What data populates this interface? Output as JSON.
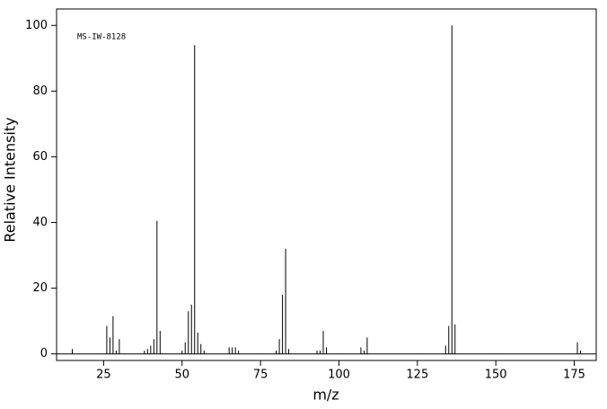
{
  "chart_data": {
    "type": "bar",
    "annotation": "MS-IW-8128",
    "xlabel": "m/z",
    "ylabel": "Relative Intensity",
    "x": [
      15,
      26,
      27,
      28,
      29,
      30,
      38,
      39,
      40,
      41,
      42,
      43,
      50,
      51,
      52,
      53,
      54,
      55,
      56,
      57,
      65,
      66,
      67,
      68,
      80,
      81,
      82,
      83,
      84,
      93,
      94,
      95,
      96,
      107,
      108,
      109,
      134,
      135,
      136,
      137,
      176,
      177
    ],
    "values": [
      1.5,
      8.5,
      5,
      11.5,
      1,
      4.5,
      1,
      1.5,
      2.5,
      4.5,
      40.5,
      7,
      1,
      3.5,
      13,
      15,
      94,
      6.5,
      3,
      1,
      2,
      2,
      2,
      1,
      1,
      4.5,
      18,
      32,
      1.5,
      1,
      1,
      7,
      2,
      2,
      1,
      5,
      2.5,
      8.5,
      100,
      9,
      3.5,
      1
    ],
    "color": "#000000",
    "xlim": [
      10,
      182
    ],
    "xticks": [
      25,
      50,
      75,
      100,
      125,
      150,
      175
    ],
    "ylim": [
      -2,
      105
    ],
    "yticks": [
      0,
      20,
      40,
      60,
      80,
      100
    ]
  }
}
